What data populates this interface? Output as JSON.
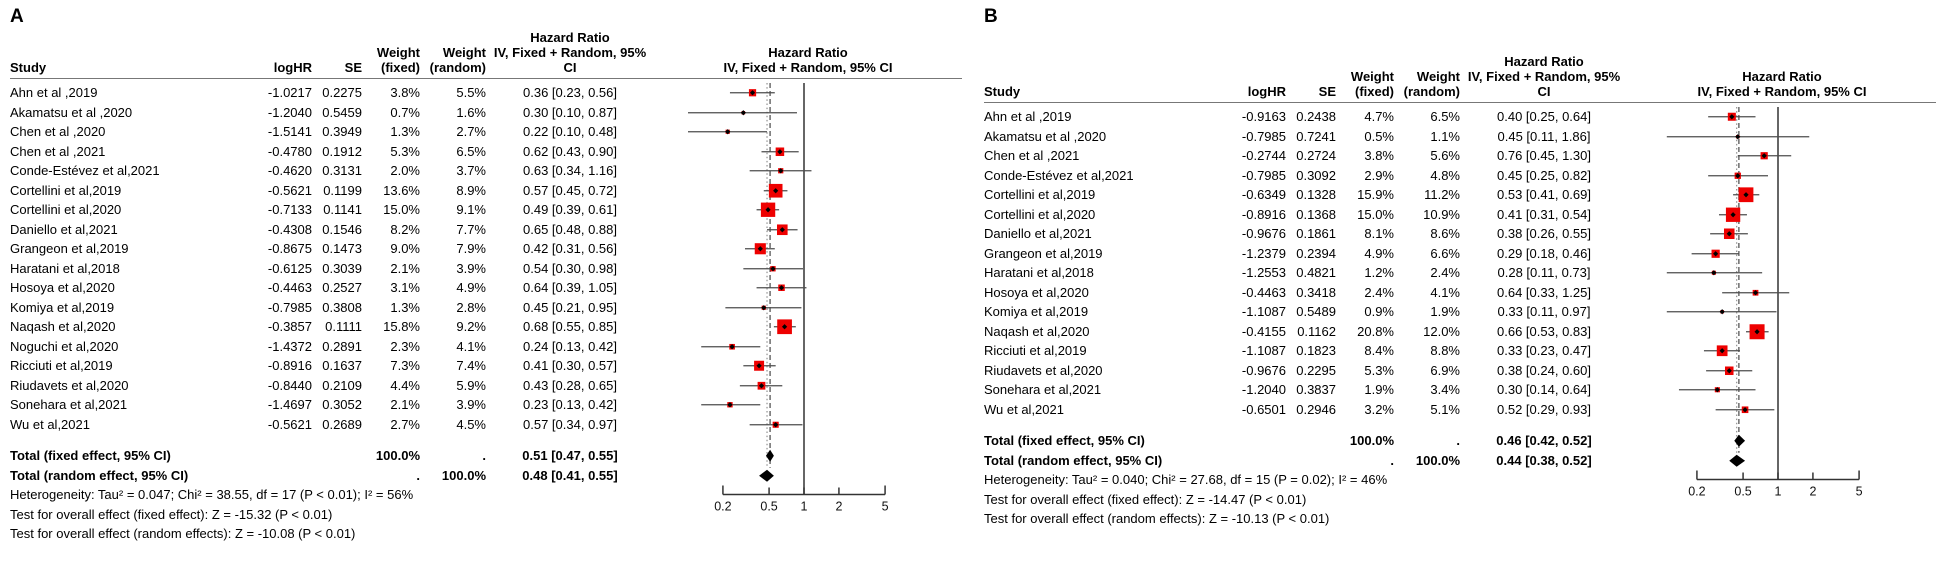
{
  "chart_data": [
    {
      "type": "forest",
      "panel_label": "A",
      "header": {
        "study": "Study",
        "loghr": "logHR",
        "se": "SE",
        "w_fixed_1": "Weight",
        "w_fixed_2": "(fixed)",
        "w_random_1": "Weight",
        "w_random_2": "(random)",
        "hr_1": "Hazard Ratio",
        "hr_2": "IV, Fixed + Random, 95% CI",
        "plot_1": "Hazard Ratio",
        "plot_2": "IV, Fixed + Random, 95% CI"
      },
      "x_axis": {
        "scale": "log",
        "ticks": [
          0.2,
          0.5,
          1,
          2,
          5
        ],
        "ref_line": 1
      },
      "pooled": {
        "fixed": 0.51,
        "random": 0.48
      },
      "colors": {
        "marker": "#ee0000",
        "ci_line": "#4d4d4d",
        "diamond": "#000000",
        "ref_line": "#333333",
        "dotted_line": "#999999",
        "dashed_line": "#555555"
      },
      "studies": [
        {
          "name": "Ahn et al ,2019",
          "loghr": "-1.0217",
          "se": "0.2275",
          "w_fixed": "3.8%",
          "w_random": "5.5%",
          "hr": 0.36,
          "ci_low": 0.23,
          "ci_high": 0.56,
          "hr_label": "0.36 [0.23, 0.56]"
        },
        {
          "name": "Akamatsu et al ,2020",
          "loghr": "-1.2040",
          "se": "0.5459",
          "w_fixed": "0.7%",
          "w_random": "1.6%",
          "hr": 0.3,
          "ci_low": 0.1,
          "ci_high": 0.87,
          "hr_label": "0.30 [0.10, 0.87]"
        },
        {
          "name": "Chen et al ,2020",
          "loghr": "-1.5141",
          "se": "0.3949",
          "w_fixed": "1.3%",
          "w_random": "2.7%",
          "hr": 0.22,
          "ci_low": 0.1,
          "ci_high": 0.48,
          "hr_label": "0.22 [0.10, 0.48]"
        },
        {
          "name": "Chen et al ,2021",
          "loghr": "-0.4780",
          "se": "0.1912",
          "w_fixed": "5.3%",
          "w_random": "6.5%",
          "hr": 0.62,
          "ci_low": 0.43,
          "ci_high": 0.9,
          "hr_label": "0.62 [0.43, 0.90]"
        },
        {
          "name": "Conde-Estévez et al,2021",
          "loghr": "-0.4620",
          "se": "0.3131",
          "w_fixed": "2.0%",
          "w_random": "3.7%",
          "hr": 0.63,
          "ci_low": 0.34,
          "ci_high": 1.16,
          "hr_label": "0.63 [0.34, 1.16]"
        },
        {
          "name": "Cortellini et al,2019",
          "loghr": "-0.5621",
          "se": "0.1199",
          "w_fixed": "13.6%",
          "w_random": "8.9%",
          "hr": 0.57,
          "ci_low": 0.45,
          "ci_high": 0.72,
          "hr_label": "0.57 [0.45, 0.72]"
        },
        {
          "name": "Cortellini et al,2020",
          "loghr": "-0.7133",
          "se": "0.1141",
          "w_fixed": "15.0%",
          "w_random": "9.1%",
          "hr": 0.49,
          "ci_low": 0.39,
          "ci_high": 0.61,
          "hr_label": "0.49 [0.39, 0.61]"
        },
        {
          "name": "Daniello et al,2021",
          "loghr": "-0.4308",
          "se": "0.1546",
          "w_fixed": "8.2%",
          "w_random": "7.7%",
          "hr": 0.65,
          "ci_low": 0.48,
          "ci_high": 0.88,
          "hr_label": "0.65 [0.48, 0.88]"
        },
        {
          "name": "Grangeon et al,2019",
          "loghr": "-0.8675",
          "se": "0.1473",
          "w_fixed": "9.0%",
          "w_random": "7.9%",
          "hr": 0.42,
          "ci_low": 0.31,
          "ci_high": 0.56,
          "hr_label": "0.42 [0.31, 0.56]"
        },
        {
          "name": "Haratani et al,2018",
          "loghr": "-0.6125",
          "se": "0.3039",
          "w_fixed": "2.1%",
          "w_random": "3.9%",
          "hr": 0.54,
          "ci_low": 0.3,
          "ci_high": 0.98,
          "hr_label": "0.54 [0.30, 0.98]"
        },
        {
          "name": "Hosoya et al,2020",
          "loghr": "-0.4463",
          "se": "0.2527",
          "w_fixed": "3.1%",
          "w_random": "4.9%",
          "hr": 0.64,
          "ci_low": 0.39,
          "ci_high": 1.05,
          "hr_label": "0.64 [0.39, 1.05]"
        },
        {
          "name": "Komiya et al,2019",
          "loghr": "-0.7985",
          "se": "0.3808",
          "w_fixed": "1.3%",
          "w_random": "2.8%",
          "hr": 0.45,
          "ci_low": 0.21,
          "ci_high": 0.95,
          "hr_label": "0.45 [0.21, 0.95]"
        },
        {
          "name": "Naqash et al,2020",
          "loghr": "-0.3857",
          "se": "0.1111",
          "w_fixed": "15.8%",
          "w_random": "9.2%",
          "hr": 0.68,
          "ci_low": 0.55,
          "ci_high": 0.85,
          "hr_label": "0.68 [0.55, 0.85]"
        },
        {
          "name": "Noguchi et al,2020",
          "loghr": "-1.4372",
          "se": "0.2891",
          "w_fixed": "2.3%",
          "w_random": "4.1%",
          "hr": 0.24,
          "ci_low": 0.13,
          "ci_high": 0.42,
          "hr_label": "0.24 [0.13, 0.42]"
        },
        {
          "name": "Ricciuti et al,2019",
          "loghr": "-0.8916",
          "se": "0.1637",
          "w_fixed": "7.3%",
          "w_random": "7.4%",
          "hr": 0.41,
          "ci_low": 0.3,
          "ci_high": 0.57,
          "hr_label": "0.41 [0.30, 0.57]"
        },
        {
          "name": "Riudavets et al,2020",
          "loghr": "-0.8440",
          "se": "0.2109",
          "w_fixed": "4.4%",
          "w_random": "5.9%",
          "hr": 0.43,
          "ci_low": 0.28,
          "ci_high": 0.65,
          "hr_label": "0.43 [0.28, 0.65]"
        },
        {
          "name": "Sonehara et al,2021",
          "loghr": "-1.4697",
          "se": "0.3052",
          "w_fixed": "2.1%",
          "w_random": "3.9%",
          "hr": 0.23,
          "ci_low": 0.13,
          "ci_high": 0.42,
          "hr_label": "0.23 [0.13, 0.42]"
        },
        {
          "name": "Wu et al,2021",
          "loghr": "-0.5621",
          "se": "0.2689",
          "w_fixed": "2.7%",
          "w_random": "4.5%",
          "hr": 0.57,
          "ci_low": 0.34,
          "ci_high": 0.97,
          "hr_label": "0.57 [0.34, 0.97]"
        }
      ],
      "totals": [
        {
          "name": "Total (fixed effect, 95% CI)",
          "w_fixed": "100.0%",
          "w_random": ".",
          "hr": 0.51,
          "ci_low": 0.47,
          "ci_high": 0.55,
          "hr_label": "0.51 [0.47, 0.55]"
        },
        {
          "name": "Total (random effect, 95% CI)",
          "w_fixed": ".",
          "w_random": "100.0%",
          "hr": 0.48,
          "ci_low": 0.41,
          "ci_high": 0.55,
          "hr_label": "0.48 [0.41, 0.55]"
        }
      ],
      "footnotes": [
        "Heterogeneity: Tau² = 0.047; Chi² = 38.55, df = 17 (P < 0.01); I² = 56%",
        "Test for overall effect (fixed effect): Z = -15.32 (P < 0.01)",
        "Test for overall effect (random effects): Z = -10.08 (P < 0.01)"
      ]
    },
    {
      "type": "forest",
      "panel_label": "B",
      "header": {
        "study": "Study",
        "loghr": "logHR",
        "se": "SE",
        "w_fixed_1": "Weight",
        "w_fixed_2": "(fixed)",
        "w_random_1": "Weight",
        "w_random_2": "(random)",
        "hr_1": "Hazard Ratio",
        "hr_2": "IV, Fixed + Random, 95% CI",
        "plot_1": "Hazard Ratio",
        "plot_2": "IV, Fixed + Random, 95% CI"
      },
      "x_axis": {
        "scale": "log",
        "ticks": [
          0.2,
          0.5,
          1,
          2,
          5
        ],
        "ref_line": 1
      },
      "pooled": {
        "fixed": 0.46,
        "random": 0.44
      },
      "colors": {
        "marker": "#ee0000",
        "ci_line": "#4d4d4d",
        "diamond": "#000000",
        "ref_line": "#333333",
        "dotted_line": "#999999",
        "dashed_line": "#555555"
      },
      "studies": [
        {
          "name": "Ahn et al ,2019",
          "loghr": "-0.9163",
          "se": "0.2438",
          "w_fixed": "4.7%",
          "w_random": "6.5%",
          "hr": 0.4,
          "ci_low": 0.25,
          "ci_high": 0.64,
          "hr_label": "0.40 [0.25, 0.64]"
        },
        {
          "name": "Akamatsu et al ,2020",
          "loghr": "-0.7985",
          "se": "0.7241",
          "w_fixed": "0.5%",
          "w_random": "1.1%",
          "hr": 0.45,
          "ci_low": 0.11,
          "ci_high": 1.86,
          "hr_label": "0.45 [0.11, 1.86]"
        },
        {
          "name": "Chen et al ,2021",
          "loghr": "-0.2744",
          "se": "0.2724",
          "w_fixed": "3.8%",
          "w_random": "5.6%",
          "hr": 0.76,
          "ci_low": 0.45,
          "ci_high": 1.3,
          "hr_label": "0.76 [0.45, 1.30]"
        },
        {
          "name": "Conde-Estévez et al,2021",
          "loghr": "-0.7985",
          "se": "0.3092",
          "w_fixed": "2.9%",
          "w_random": "4.8%",
          "hr": 0.45,
          "ci_low": 0.25,
          "ci_high": 0.82,
          "hr_label": "0.45 [0.25, 0.82]"
        },
        {
          "name": "Cortellini et al,2019",
          "loghr": "-0.6349",
          "se": "0.1328",
          "w_fixed": "15.9%",
          "w_random": "11.2%",
          "hr": 0.53,
          "ci_low": 0.41,
          "ci_high": 0.69,
          "hr_label": "0.53 [0.41, 0.69]"
        },
        {
          "name": "Cortellini et al,2020",
          "loghr": "-0.8916",
          "se": "0.1368",
          "w_fixed": "15.0%",
          "w_random": "10.9%",
          "hr": 0.41,
          "ci_low": 0.31,
          "ci_high": 0.54,
          "hr_label": "0.41 [0.31, 0.54]"
        },
        {
          "name": "Daniello et al,2021",
          "loghr": "-0.9676",
          "se": "0.1861",
          "w_fixed": "8.1%",
          "w_random": "8.6%",
          "hr": 0.38,
          "ci_low": 0.26,
          "ci_high": 0.55,
          "hr_label": "0.38 [0.26, 0.55]"
        },
        {
          "name": "Grangeon et al,2019",
          "loghr": "-1.2379",
          "se": "0.2394",
          "w_fixed": "4.9%",
          "w_random": "6.6%",
          "hr": 0.29,
          "ci_low": 0.18,
          "ci_high": 0.46,
          "hr_label": "0.29 [0.18, 0.46]"
        },
        {
          "name": "Haratani et al,2018",
          "loghr": "-1.2553",
          "se": "0.4821",
          "w_fixed": "1.2%",
          "w_random": "2.4%",
          "hr": 0.28,
          "ci_low": 0.11,
          "ci_high": 0.73,
          "hr_label": "0.28 [0.11, 0.73]"
        },
        {
          "name": "Hosoya et al,2020",
          "loghr": "-0.4463",
          "se": "0.3418",
          "w_fixed": "2.4%",
          "w_random": "4.1%",
          "hr": 0.64,
          "ci_low": 0.33,
          "ci_high": 1.25,
          "hr_label": "0.64 [0.33, 1.25]"
        },
        {
          "name": "Komiya et al,2019",
          "loghr": "-1.1087",
          "se": "0.5489",
          "w_fixed": "0.9%",
          "w_random": "1.9%",
          "hr": 0.33,
          "ci_low": 0.11,
          "ci_high": 0.97,
          "hr_label": "0.33 [0.11, 0.97]"
        },
        {
          "name": "Naqash et al,2020",
          "loghr": "-0.4155",
          "se": "0.1162",
          "w_fixed": "20.8%",
          "w_random": "12.0%",
          "hr": 0.66,
          "ci_low": 0.53,
          "ci_high": 0.83,
          "hr_label": "0.66 [0.53, 0.83]"
        },
        {
          "name": "Ricciuti et al,2019",
          "loghr": "-1.1087",
          "se": "0.1823",
          "w_fixed": "8.4%",
          "w_random": "8.8%",
          "hr": 0.33,
          "ci_low": 0.23,
          "ci_high": 0.47,
          "hr_label": "0.33 [0.23, 0.47]"
        },
        {
          "name": "Riudavets et al,2020",
          "loghr": "-0.9676",
          "se": "0.2295",
          "w_fixed": "5.3%",
          "w_random": "6.9%",
          "hr": 0.38,
          "ci_low": 0.24,
          "ci_high": 0.6,
          "hr_label": "0.38 [0.24, 0.60]"
        },
        {
          "name": "Sonehara et al,2021",
          "loghr": "-1.2040",
          "se": "0.3837",
          "w_fixed": "1.9%",
          "w_random": "3.4%",
          "hr": 0.3,
          "ci_low": 0.14,
          "ci_high": 0.64,
          "hr_label": "0.30 [0.14, 0.64]"
        },
        {
          "name": "Wu et al,2021",
          "loghr": "-0.6501",
          "se": "0.2946",
          "w_fixed": "3.2%",
          "w_random": "5.1%",
          "hr": 0.52,
          "ci_low": 0.29,
          "ci_high": 0.93,
          "hr_label": "0.52 [0.29, 0.93]"
        }
      ],
      "totals": [
        {
          "name": "Total (fixed effect, 95% CI)",
          "w_fixed": "100.0%",
          "w_random": ".",
          "hr": 0.46,
          "ci_low": 0.42,
          "ci_high": 0.52,
          "hr_label": "0.46 [0.42, 0.52]"
        },
        {
          "name": "Total (random effect, 95% CI)",
          "w_fixed": ".",
          "w_random": "100.0%",
          "hr": 0.44,
          "ci_low": 0.38,
          "ci_high": 0.52,
          "hr_label": "0.44 [0.38, 0.52]"
        }
      ],
      "footnotes": [
        "Heterogeneity: Tau² = 0.040; Chi² = 27.68, df = 15 (P = 0.02); I² = 46%",
        "Test for overall effect (fixed effect): Z = -14.47 (P < 0.01)",
        "Test for overall effect (random effects): Z = -10.13 (P < 0.01)"
      ]
    }
  ]
}
